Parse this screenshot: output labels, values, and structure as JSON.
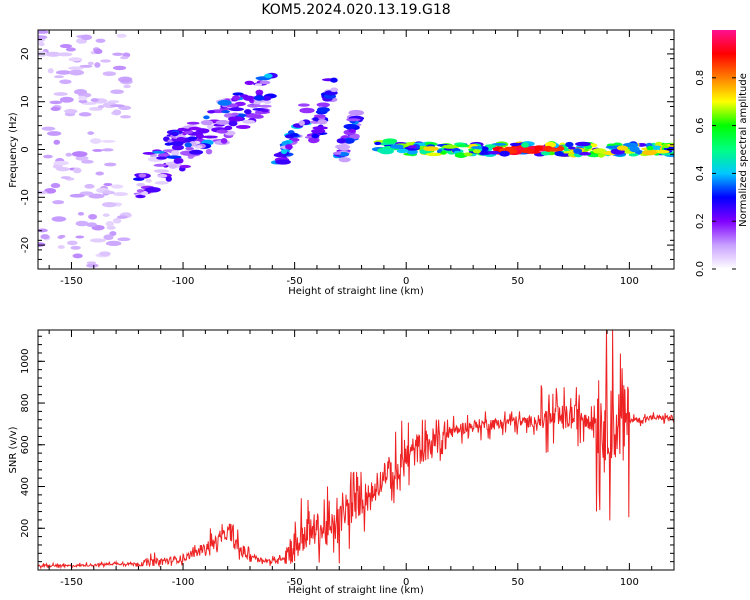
{
  "title": "KOM5.2024.020.13.19.G18",
  "chart_data": [
    {
      "type": "heatmap",
      "xlabel": "Height of straight line (km)",
      "ylabel": "Frequency (Hz)",
      "xlim": [
        -165,
        120
      ],
      "ylim": [
        -25,
        25
      ],
      "xticks": [
        -150,
        -100,
        -50,
        0,
        50,
        100
      ],
      "yticks": [
        -20,
        -10,
        0,
        10,
        20
      ],
      "colorbar": {
        "label": "Normalized spectral amplitude",
        "range": [
          0.0,
          1.0
        ],
        "ticks": [
          0.0,
          0.2,
          0.4,
          0.6,
          0.8
        ],
        "colormap": [
          "#ffffff",
          "#c8a0ff",
          "#8000ff",
          "#0000ff",
          "#00c8ff",
          "#00ff80",
          "#00ff00",
          "#ffff00",
          "#ff8000",
          "#ff0000",
          "#ff1090"
        ]
      },
      "features": [
        {
          "desc": "scattered noise",
          "x": [
            -165,
            -125
          ],
          "y": [
            -25,
            25
          ],
          "amp": 0.05
        },
        {
          "desc": "rising streak",
          "x": [
            -120,
            -60
          ],
          "y": [
            -6,
            13
          ],
          "amp": 0.2
        },
        {
          "desc": "blob 1",
          "x": [
            -57,
            -45
          ],
          "y": [
            -3,
            8
          ],
          "amp": 0.35
        },
        {
          "desc": "blob 2",
          "x": [
            -42,
            -33
          ],
          "y": [
            2,
            14
          ],
          "amp": 0.25
        },
        {
          "desc": "blob 3",
          "x": [
            -30,
            -22
          ],
          "y": [
            -2,
            7
          ],
          "amp": 0.3
        },
        {
          "desc": "steady band",
          "x": [
            -15,
            120
          ],
          "y": [
            0,
            0
          ],
          "amp": 0.6
        }
      ]
    },
    {
      "type": "line",
      "xlabel": "Height of straight line (km)",
      "ylabel": "SNR (v/v)",
      "xlim": [
        -165,
        120
      ],
      "ylim": [
        0,
        1150
      ],
      "xticks": [
        -150,
        -100,
        -50,
        0,
        50,
        100
      ],
      "yticks": [
        200,
        400,
        600,
        800,
        1000
      ],
      "color": "#ee2222",
      "series": [
        {
          "x": [
            -165,
            -150,
            -140,
            -130,
            -120,
            -110,
            -100,
            -95,
            -90,
            -85,
            -80,
            -78,
            -75,
            -70,
            -65,
            -60,
            -55,
            -50,
            -45,
            -40,
            -35,
            -30,
            -25,
            -20,
            -15,
            -10,
            -5,
            0,
            5,
            10,
            15,
            20,
            25,
            30,
            35,
            40,
            45,
            50,
            55,
            60,
            65,
            70,
            75,
            80,
            85,
            90,
            95,
            100,
            105,
            110,
            115,
            120
          ],
          "y": [
            20,
            20,
            25,
            30,
            30,
            40,
            55,
            80,
            110,
            130,
            180,
            150,
            100,
            70,
            50,
            40,
            60,
            120,
            170,
            200,
            180,
            230,
            300,
            340,
            360,
            480,
            450,
            540,
            580,
            600,
            620,
            660,
            680,
            690,
            700,
            700,
            710,
            710,
            710,
            720,
            720,
            730,
            730,
            740,
            720,
            700,
            700,
            720,
            720,
            730,
            730,
            730
          ]
        }
      ],
      "envelope": [
        {
          "x": [
            -165,
            -120
          ],
          "lo": 10,
          "hi": 40
        },
        {
          "x": [
            -120,
            -90
          ],
          "lo": 20,
          "hi": 120
        },
        {
          "x": [
            -90,
            -70
          ],
          "lo": 40,
          "hi": 220
        },
        {
          "x": [
            -70,
            -55
          ],
          "lo": 20,
          "hi": 80
        },
        {
          "x": [
            -55,
            -10
          ],
          "lo": 30,
          "hi": 470
        },
        {
          "x": [
            -10,
            20
          ],
          "lo": 280,
          "hi": 720
        },
        {
          "x": [
            20,
            60
          ],
          "lo": 600,
          "hi": 760
        },
        {
          "x": [
            60,
            85
          ],
          "lo": 560,
          "hi": 900
        },
        {
          "x": [
            85,
            100
          ],
          "lo": 140,
          "hi": 1160
        },
        {
          "x": [
            100,
            120
          ],
          "lo": 690,
          "hi": 760
        }
      ]
    }
  ]
}
